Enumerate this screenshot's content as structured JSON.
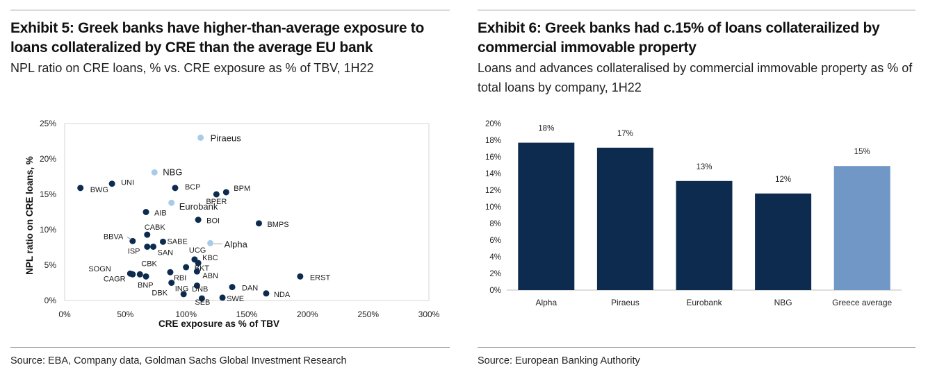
{
  "left": {
    "title": "Exhibit 5: Greek banks have higher-than-average exposure to loans collateralized by CRE than the average EU bank",
    "subtitle": "NPL ratio on CRE loans, % vs. CRE exposure as % of TBV, 1H22",
    "source": "Source: EBA, Company data, Goldman Sachs Global Investment Research"
  },
  "right": {
    "title": "Exhibit 6: Greek banks had c.15% of loans collaterailized by commercial immovable property",
    "subtitle": "Loans and advances collateralised by commercial immovable property as % of total loans by company, 1H22",
    "source": "Source: European Banking Authority"
  },
  "chart_data": [
    {
      "type": "scatter",
      "xlabel": "CRE exposure as % of TBV",
      "ylabel": "NPL ratio on CRE loans, %",
      "xlim": [
        0,
        300
      ],
      "ylim": [
        0,
        25
      ],
      "xticks": [
        "0%",
        "50%",
        "100%",
        "150%",
        "200%",
        "250%",
        "300%"
      ],
      "yticks": [
        "0%",
        "5%",
        "10%",
        "15%",
        "20%",
        "25%"
      ],
      "grid": false,
      "colors": {
        "greek": "#a9cbe8",
        "other": "#0c2b4f"
      },
      "points": [
        {
          "label": "Piraeus",
          "x": 112,
          "y": 23.0,
          "greek": true
        },
        {
          "label": "NBG",
          "x": 74,
          "y": 18.1,
          "greek": true
        },
        {
          "label": "Eurobank",
          "x": 88,
          "y": 13.8,
          "greek": true
        },
        {
          "label": "Alpha",
          "x": 120,
          "y": 8.1,
          "greek": true
        },
        {
          "label": "BWG",
          "x": 13,
          "y": 15.9
        },
        {
          "label": "UNI",
          "x": 39,
          "y": 16.5
        },
        {
          "label": "BCP",
          "x": 91,
          "y": 15.9
        },
        {
          "label": "BPM",
          "x": 133,
          "y": 15.3
        },
        {
          "label": "BPER",
          "x": 125,
          "y": 15.0
        },
        {
          "label": "AIB",
          "x": 67,
          "y": 12.5
        },
        {
          "label": "BOI",
          "x": 110,
          "y": 11.4
        },
        {
          "label": "BMPS",
          "x": 160,
          "y": 10.9
        },
        {
          "label": "CABK",
          "x": 68,
          "y": 9.3
        },
        {
          "label": "BBVA",
          "x": 56,
          "y": 8.4
        },
        {
          "label": "SABE",
          "x": 81,
          "y": 8.3
        },
        {
          "label": "ISP",
          "x": 68,
          "y": 7.6
        },
        {
          "label": "SAN",
          "x": 73,
          "y": 7.6
        },
        {
          "label": "UCG",
          "x": 107,
          "y": 5.8
        },
        {
          "label": "KBC",
          "x": 110,
          "y": 5.3
        },
        {
          "label": "BKT",
          "x": 100,
          "y": 4.7
        },
        {
          "label": "ABN",
          "x": 109,
          "y": 4.1
        },
        {
          "label": "SOGN",
          "x": 54,
          "y": 3.8
        },
        {
          "label": "CBK",
          "x": 62,
          "y": 3.7
        },
        {
          "label": "CAGR",
          "x": 56,
          "y": 3.7
        },
        {
          "label": "BNP",
          "x": 67,
          "y": 3.4
        },
        {
          "label": "RBI",
          "x": 87,
          "y": 4.0
        },
        {
          "label": "ERST",
          "x": 194,
          "y": 3.4
        },
        {
          "label": "ING",
          "x": 88,
          "y": 2.5
        },
        {
          "label": "DAN",
          "x": 138,
          "y": 1.9
        },
        {
          "label": "DBK",
          "x": 109,
          "y": 2.1
        },
        {
          "label": "DNB",
          "x": 98,
          "y": 0.9
        },
        {
          "label": "NDA",
          "x": 166,
          "y": 1.0
        },
        {
          "label": "SEB",
          "x": 113,
          "y": 0.3
        },
        {
          "label": "SWE",
          "x": 130,
          "y": 0.4
        }
      ]
    },
    {
      "type": "bar",
      "categories": [
        "Alpha",
        "Piraeus",
        "Eurobank",
        "NBG",
        "Greece average"
      ],
      "values": [
        17.7,
        17.1,
        13.1,
        11.6,
        14.9
      ],
      "data_labels": [
        "18%",
        "17%",
        "13%",
        "12%",
        "15%"
      ],
      "ylim": [
        0,
        20
      ],
      "yticks": [
        "0%",
        "2%",
        "4%",
        "6%",
        "8%",
        "10%",
        "12%",
        "14%",
        "16%",
        "18%",
        "20%"
      ],
      "grid": false,
      "colors": {
        "bank": "#0c2b4f",
        "average": "#7197c6"
      }
    }
  ]
}
